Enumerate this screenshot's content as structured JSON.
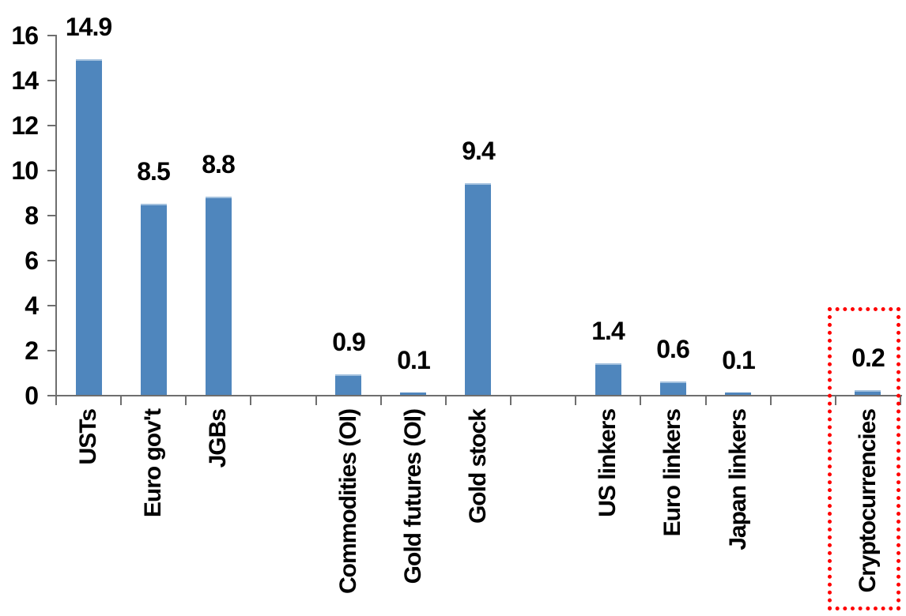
{
  "chart_data": {
    "type": "bar",
    "title": "",
    "xlabel": "",
    "ylabel": "",
    "categories": [
      "USTs",
      "Euro gov't",
      "JGBs",
      "Commodities (OI)",
      "Gold futures (OI)",
      "Gold stock",
      "US linkers",
      "Euro linkers",
      "Japan linkers",
      "Cryptocurrencies"
    ],
    "values": [
      14.9,
      8.5,
      8.8,
      0.9,
      0.1,
      9.4,
      1.4,
      0.6,
      0.1,
      0.2
    ],
    "data_labels": [
      "14.9",
      "8.5",
      "8.8",
      "0.9",
      "0.1",
      "9.4",
      "1.4",
      "0.6",
      "0.1",
      "0.2"
    ],
    "slot_layout": [
      0,
      1,
      2,
      -1,
      3,
      4,
      5,
      -1,
      6,
      7,
      8,
      -1,
      9
    ],
    "y_ticks": [
      "0",
      "2",
      "4",
      "6",
      "8",
      "10",
      "12",
      "14",
      "16"
    ],
    "ylim": [
      0,
      16
    ],
    "grid": false,
    "legend": null,
    "colors": {
      "bar": "#4F86BD",
      "bar_top_edge": "#A3C1DE",
      "axis": "#6E6E6E",
      "text": "#000000",
      "highlight_box": "#FF0000"
    },
    "annotations": [
      {
        "type": "highlight-box",
        "target": "Cryptocurrencies",
        "style": "red-dotted-rectangle"
      }
    ]
  }
}
